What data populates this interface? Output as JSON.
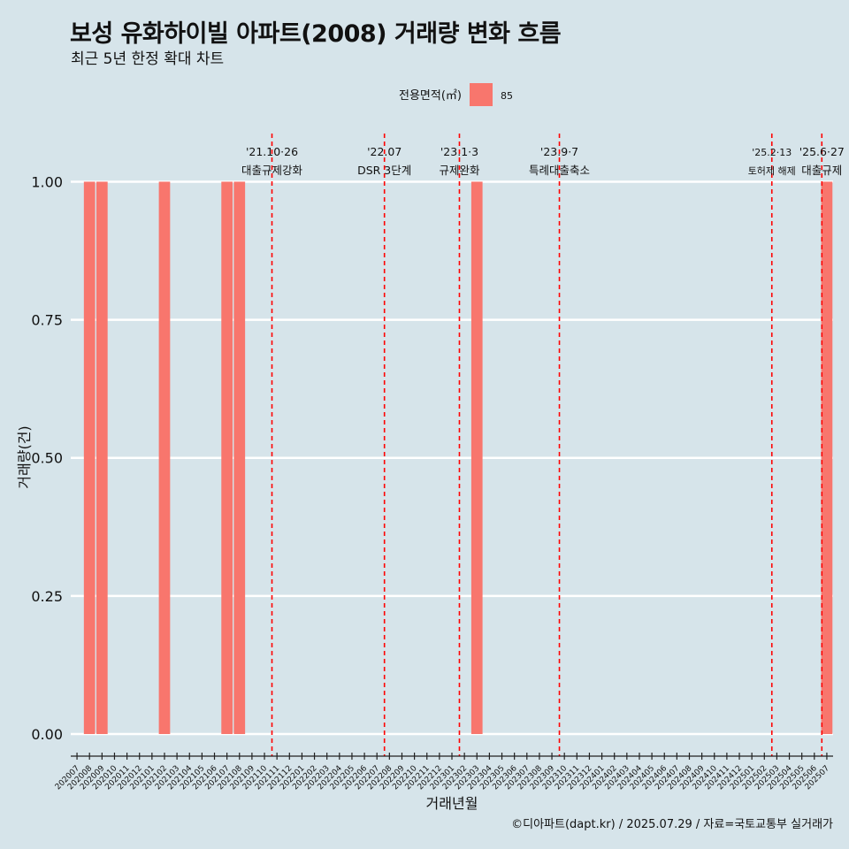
{
  "title": "보성 유화하이빌 아파트(2008) 거래량 변화 흐름",
  "subtitle": "최근 5년 한정 확대 차트",
  "caption": "©디아파트(dapt.kr) / 2025.07.29 / 자료=국토교통부 실거래가",
  "chart_data": {
    "type": "bar",
    "xlabel": "거래년월",
    "ylabel": "거래량(건)",
    "ylim": [
      -0.04,
      1.1
    ],
    "yticks": [
      "0.00",
      "0.25",
      "0.50",
      "0.75",
      "1.00"
    ],
    "ytick_values": [
      0,
      0.25,
      0.5,
      0.75,
      1.0
    ],
    "legend": {
      "title": "전용면적(㎡)",
      "position": "top",
      "entries": [
        {
          "name": "85",
          "color": "#f8766d"
        }
      ]
    },
    "categories": [
      "202007",
      "202008",
      "202009",
      "202010",
      "202011",
      "202012",
      "202101",
      "202102",
      "202103",
      "202104",
      "202105",
      "202106",
      "202107",
      "202108",
      "202109",
      "202110",
      "202111",
      "202112",
      "202201",
      "202202",
      "202203",
      "202204",
      "202205",
      "202206",
      "202207",
      "202208",
      "202209",
      "202210",
      "202211",
      "202212",
      "202301",
      "202302",
      "202303",
      "202304",
      "202305",
      "202306",
      "202307",
      "202308",
      "202309",
      "202310",
      "202311",
      "202312",
      "202401",
      "202402",
      "202403",
      "202404",
      "202405",
      "202406",
      "202407",
      "202408",
      "202409",
      "202410",
      "202411",
      "202412",
      "202501",
      "202502",
      "202503",
      "202504",
      "202505",
      "202506",
      "202507"
    ],
    "series": [
      {
        "name": "85",
        "color": "#f8766d",
        "values": [
          0,
          1,
          1,
          0,
          0,
          0,
          0,
          1,
          0,
          0,
          0,
          0,
          1,
          1,
          0,
          0,
          0,
          0,
          0,
          0,
          0,
          0,
          0,
          0,
          0,
          0,
          0,
          0,
          0,
          0,
          0,
          0,
          1,
          0,
          0,
          0,
          0,
          0,
          0,
          0,
          0,
          0,
          0,
          0,
          0,
          0,
          0,
          0,
          0,
          0,
          0,
          0,
          0,
          0,
          0,
          0,
          0,
          0,
          0,
          0,
          1
        ]
      }
    ],
    "annotations": [
      {
        "date": "'21.10·26",
        "label": "대출규제강화",
        "x": 15.6,
        "size": "large"
      },
      {
        "date": "'22.07",
        "label": "DSR 3단계",
        "x": 24.6,
        "size": "large"
      },
      {
        "date": "'23.1·3",
        "label": "규제완화",
        "x": 30.6,
        "size": "large"
      },
      {
        "date": "'23.9·7",
        "label": "특례대출축소",
        "x": 38.6,
        "size": "large"
      },
      {
        "date": "'25.2·13",
        "label": "토허제 해제",
        "x": 55.6,
        "size": "small"
      },
      {
        "date": "'25.6·27",
        "label": "대출규제",
        "x": 59.6,
        "size": "large"
      }
    ],
    "annotation_color": "#ff0000",
    "grid": true
  }
}
